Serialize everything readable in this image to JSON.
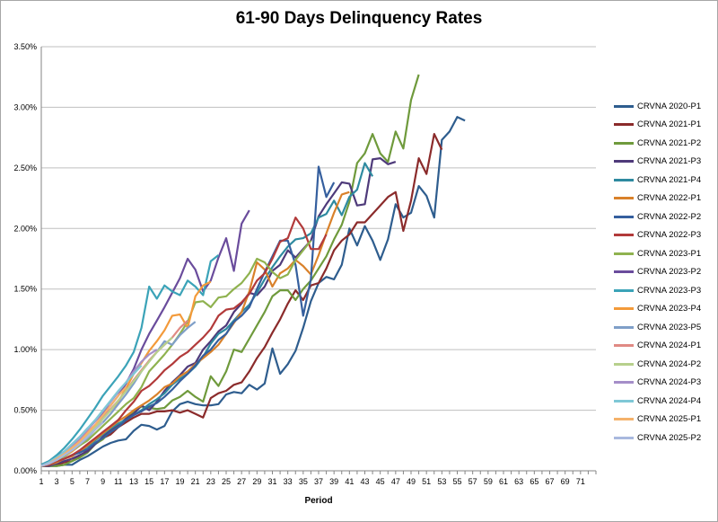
{
  "chart_data": {
    "type": "line",
    "title": "61-90 Days Delinquency Rates",
    "xlabel": "Period",
    "ylabel": "",
    "ylim": [
      0,
      0.035
    ],
    "xlim": [
      1,
      73
    ],
    "x_ticks": [
      1,
      3,
      5,
      7,
      9,
      11,
      13,
      15,
      17,
      19,
      21,
      23,
      25,
      27,
      29,
      31,
      33,
      35,
      37,
      39,
      41,
      43,
      45,
      47,
      49,
      51,
      53,
      55,
      57,
      59,
      61,
      63,
      65,
      67,
      69,
      71
    ],
    "y_ticks": [
      "0.00%",
      "0.50%",
      "1.00%",
      "1.50%",
      "2.00%",
      "2.50%",
      "3.00%",
      "3.50%"
    ],
    "grid": "horizontal",
    "legend_position": "right",
    "series": [
      {
        "name": "CRVNA 2020-P1",
        "color": "#2e5d8e",
        "values": [
          0.0004,
          0.0004,
          0.0004,
          0.0005,
          0.0005,
          0.0009,
          0.0012,
          0.0016,
          0.002,
          0.0023,
          0.0025,
          0.0026,
          0.0033,
          0.0038,
          0.0037,
          0.0034,
          0.0037,
          0.0049,
          0.0055,
          0.0057,
          0.0055,
          0.0054,
          0.0054,
          0.0055,
          0.0063,
          0.0065,
          0.0064,
          0.0071,
          0.0067,
          0.0072,
          0.0101,
          0.008,
          0.0088,
          0.0099,
          0.0118,
          0.014,
          0.0155,
          0.016,
          0.0158,
          0.017,
          0.02,
          0.0186,
          0.0202,
          0.019,
          0.0174,
          0.0191,
          0.022,
          0.0209,
          0.0213,
          0.0235,
          0.0227,
          0.0209,
          0.0273,
          0.028,
          0.0292,
          0.0289
        ]
      },
      {
        "name": "CRVNA 2021-P1",
        "color": "#8b2b2b",
        "values": [
          0.0004,
          0.0004,
          0.0005,
          0.0007,
          0.0008,
          0.0012,
          0.0017,
          0.0023,
          0.0027,
          0.003,
          0.0036,
          0.004,
          0.0044,
          0.0047,
          0.0047,
          0.0049,
          0.0049,
          0.005,
          0.0048,
          0.005,
          0.0047,
          0.0044,
          0.006,
          0.0064,
          0.0066,
          0.0071,
          0.0073,
          0.0082,
          0.0093,
          0.0102,
          0.0114,
          0.0125,
          0.0138,
          0.0149,
          0.0141,
          0.0153,
          0.0155,
          0.0167,
          0.0182,
          0.019,
          0.0195,
          0.0205,
          0.0205,
          0.0212,
          0.0219,
          0.0226,
          0.023,
          0.0198,
          0.0223,
          0.0258,
          0.0245,
          0.0278,
          0.0265
        ]
      },
      {
        "name": "CRVNA 2021-P2",
        "color": "#6f9a3c",
        "values": [
          0.0004,
          0.0004,
          0.0004,
          0.0005,
          0.0008,
          0.0011,
          0.0015,
          0.0022,
          0.0026,
          0.0033,
          0.0037,
          0.0043,
          0.0049,
          0.0053,
          0.0052,
          0.0051,
          0.0052,
          0.0058,
          0.0061,
          0.0066,
          0.0061,
          0.0057,
          0.0078,
          0.007,
          0.0082,
          0.01,
          0.0098,
          0.0109,
          0.012,
          0.0131,
          0.0144,
          0.0149,
          0.0149,
          0.0141,
          0.015,
          0.0157,
          0.0167,
          0.0177,
          0.0191,
          0.0203,
          0.0222,
          0.0254,
          0.0262,
          0.0278,
          0.0262,
          0.0255,
          0.028,
          0.0266,
          0.0306,
          0.0327
        ]
      },
      {
        "name": "CRVNA 2021-P3",
        "color": "#4e3a7a",
        "values": [
          0.0004,
          0.0004,
          0.0006,
          0.0008,
          0.001,
          0.0013,
          0.0016,
          0.0022,
          0.0028,
          0.0034,
          0.0038,
          0.0043,
          0.0047,
          0.0054,
          0.005,
          0.0057,
          0.0066,
          0.0073,
          0.0079,
          0.0086,
          0.0089,
          0.01,
          0.0107,
          0.0115,
          0.012,
          0.0131,
          0.0138,
          0.0147,
          0.0145,
          0.0152,
          0.0165,
          0.017,
          0.0182,
          0.0176,
          0.0183,
          0.019,
          0.021,
          0.022,
          0.0229,
          0.0238,
          0.0237,
          0.0219,
          0.022,
          0.0257,
          0.0258,
          0.0253,
          0.0255
        ]
      },
      {
        "name": "CRVNA 2021-P4",
        "color": "#2e8aa0",
        "values": [
          0.0004,
          0.0005,
          0.0007,
          0.001,
          0.0013,
          0.0016,
          0.002,
          0.0025,
          0.003,
          0.0035,
          0.0039,
          0.0042,
          0.0046,
          0.005,
          0.0055,
          0.0059,
          0.0064,
          0.0071,
          0.0076,
          0.008,
          0.0086,
          0.0094,
          0.0105,
          0.0113,
          0.0117,
          0.0124,
          0.0131,
          0.0137,
          0.0147,
          0.0158,
          0.0168,
          0.0177,
          0.0185,
          0.0191,
          0.0192,
          0.0196,
          0.0209,
          0.0212,
          0.0223,
          0.0211,
          0.0226,
          0.0232,
          0.0254,
          0.0243
        ]
      },
      {
        "name": "CRVNA 2022-P1",
        "color": "#d9812a",
        "values": [
          0.0004,
          0.0005,
          0.0007,
          0.001,
          0.0012,
          0.0016,
          0.0021,
          0.0026,
          0.0031,
          0.0036,
          0.0041,
          0.0045,
          0.005,
          0.0054,
          0.0058,
          0.0063,
          0.0069,
          0.0072,
          0.0078,
          0.0082,
          0.0088,
          0.0093,
          0.0098,
          0.0104,
          0.0113,
          0.0122,
          0.0131,
          0.0148,
          0.0172,
          0.0166,
          0.0152,
          0.0163,
          0.0167,
          0.0174,
          0.0169,
          0.0162,
          0.0178,
          0.0196,
          0.0213,
          0.0228,
          0.023
        ]
      },
      {
        "name": "CRVNA 2022-P2",
        "color": "#355f9e",
        "values": [
          0.0004,
          0.0006,
          0.0008,
          0.001,
          0.0013,
          0.0015,
          0.0018,
          0.0023,
          0.0027,
          0.0032,
          0.0036,
          0.0042,
          0.0046,
          0.0049,
          0.0053,
          0.0056,
          0.0061,
          0.0067,
          0.0074,
          0.008,
          0.0087,
          0.0095,
          0.01,
          0.0108,
          0.0113,
          0.0123,
          0.0128,
          0.0135,
          0.015,
          0.0164,
          0.0177,
          0.019,
          0.019,
          0.017,
          0.0128,
          0.0158,
          0.0251,
          0.0226,
          0.0238
        ]
      },
      {
        "name": "CRVNA 2022-P3",
        "color": "#b23a3a",
        "values": [
          0.0004,
          0.0005,
          0.0008,
          0.001,
          0.0013,
          0.0017,
          0.0022,
          0.0027,
          0.0032,
          0.0037,
          0.0042,
          0.005,
          0.0057,
          0.0066,
          0.007,
          0.0076,
          0.0083,
          0.0088,
          0.0094,
          0.0098,
          0.0104,
          0.011,
          0.0117,
          0.0128,
          0.0133,
          0.0134,
          0.0139,
          0.0146,
          0.0157,
          0.0163,
          0.0175,
          0.0189,
          0.0192,
          0.0209,
          0.02,
          0.0183,
          0.0183,
          0.0195
        ]
      },
      {
        "name": "CRVNA 2023-P1",
        "color": "#8fb24f",
        "values": [
          0.0004,
          0.0006,
          0.0009,
          0.0012,
          0.0016,
          0.0021,
          0.0025,
          0.0031,
          0.0037,
          0.0043,
          0.0049,
          0.0055,
          0.006,
          0.0069,
          0.0082,
          0.0089,
          0.0096,
          0.0104,
          0.0113,
          0.0123,
          0.0139,
          0.014,
          0.0135,
          0.0143,
          0.0144,
          0.015,
          0.0155,
          0.0163,
          0.0175,
          0.0172,
          0.0164,
          0.0159,
          0.0162,
          0.0174,
          0.0182,
          0.019
        ]
      },
      {
        "name": "CRVNA 2023-P2",
        "color": "#6a4c9c",
        "values": [
          0.0005,
          0.0008,
          0.0012,
          0.0016,
          0.0022,
          0.0028,
          0.0035,
          0.0041,
          0.0048,
          0.0054,
          0.0062,
          0.0072,
          0.0084,
          0.01,
          0.0113,
          0.0124,
          0.0135,
          0.0147,
          0.0159,
          0.0175,
          0.0166,
          0.0148,
          0.0157,
          0.0176,
          0.0192,
          0.0165,
          0.0204,
          0.0215
        ]
      },
      {
        "name": "CRVNA 2023-P3",
        "color": "#3ba3b8",
        "values": [
          0.0005,
          0.0008,
          0.0013,
          0.0019,
          0.0026,
          0.0034,
          0.0043,
          0.0052,
          0.0062,
          0.007,
          0.0078,
          0.0087,
          0.0098,
          0.0118,
          0.0152,
          0.0142,
          0.0153,
          0.0148,
          0.0145,
          0.0157,
          0.0152,
          0.0145,
          0.0173,
          0.0178
        ]
      },
      {
        "name": "CRVNA 2023-P4",
        "color": "#f39a3a",
        "values": [
          0.0004,
          0.0006,
          0.0009,
          0.0013,
          0.0016,
          0.0022,
          0.0029,
          0.0035,
          0.0043,
          0.005,
          0.0057,
          0.0068,
          0.008,
          0.0089,
          0.0099,
          0.0107,
          0.0116,
          0.0128,
          0.0129,
          0.0118,
          0.0144,
          0.0153,
          0.0156
        ]
      },
      {
        "name": "CRVNA 2023-P5",
        "color": "#7f9fc8",
        "values": [
          0.0004,
          0.0006,
          0.0009,
          0.0013,
          0.0017,
          0.0022,
          0.0027,
          0.0034,
          0.004,
          0.0047,
          0.0055,
          0.0063,
          0.0072,
          0.0082,
          0.0091,
          0.0098,
          0.0107,
          0.0104,
          0.0112,
          0.0118,
          0.0123
        ]
      },
      {
        "name": "CRVNA 2024-P1",
        "color": "#e08a84",
        "values": [
          0.0004,
          0.0006,
          0.001,
          0.0015,
          0.002,
          0.0026,
          0.0032,
          0.0038,
          0.0045,
          0.0051,
          0.0058,
          0.0066,
          0.0075,
          0.0083,
          0.0091,
          0.0098,
          0.0104,
          0.011,
          0.0118,
          0.0124
        ]
      },
      {
        "name": "CRVNA 2024-P2",
        "color": "#b7d08c",
        "values": [
          0.0004,
          0.0006,
          0.0009,
          0.0013,
          0.0018,
          0.0023,
          0.0029,
          0.0036,
          0.0043,
          0.005,
          0.0058,
          0.0066,
          0.0074,
          0.0082,
          0.009,
          0.0098,
          0.0104,
          0.011
        ]
      },
      {
        "name": "CRVNA 2024-P3",
        "color": "#a58ec8",
        "values": [
          0.0004,
          0.0007,
          0.0011,
          0.0016,
          0.0021,
          0.0027,
          0.0034,
          0.0041,
          0.0049,
          0.0057,
          0.0065,
          0.0073,
          0.0082,
          0.009,
          0.0096,
          0.01
        ]
      },
      {
        "name": "CRVNA 2024-P4",
        "color": "#7fc8d6",
        "values": [
          0.0004,
          0.0007,
          0.0011,
          0.0016,
          0.0022,
          0.0028,
          0.0035,
          0.0042,
          0.005,
          0.0058,
          0.0066,
          0.0073,
          0.008,
          0.0087
        ]
      },
      {
        "name": "CRVNA 2025-P1",
        "color": "#f5b26b",
        "values": [
          0.0004,
          0.0006,
          0.001,
          0.0014,
          0.0019,
          0.0024,
          0.0031,
          0.0038,
          0.0046,
          0.0054,
          0.0062,
          0.0069
        ]
      },
      {
        "name": "CRVNA 2025-P2",
        "color": "#a9b9de",
        "values": [
          0.0004,
          0.0006,
          0.0009,
          0.0013,
          0.0017,
          0.0022,
          0.0028,
          0.0034,
          0.004
        ]
      }
    ]
  }
}
